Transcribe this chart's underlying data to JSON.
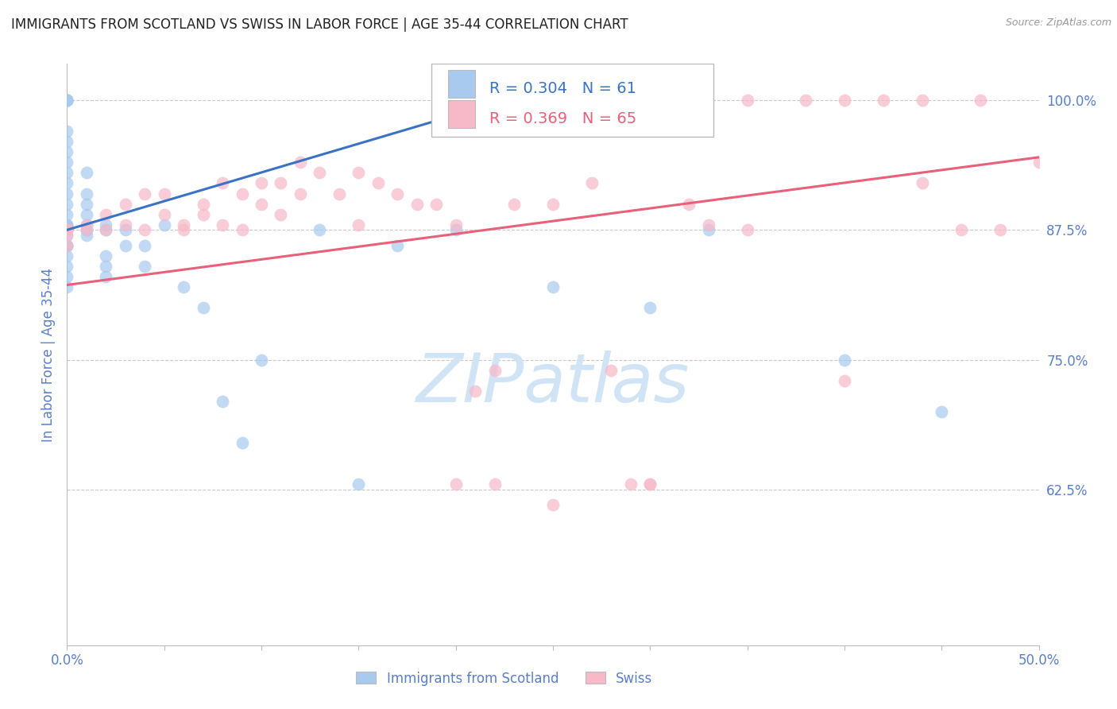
{
  "title": "IMMIGRANTS FROM SCOTLAND VS SWISS IN LABOR FORCE | AGE 35-44 CORRELATION CHART",
  "source": "Source: ZipAtlas.com",
  "ylabel": "In Labor Force | Age 35-44",
  "legend_blue_r": "R = 0.304",
  "legend_blue_n": "N = 61",
  "legend_pink_r": "R = 0.369",
  "legend_pink_n": "N = 65",
  "blue_color": "#A8CAEE",
  "pink_color": "#F7B8C8",
  "blue_line_color": "#3A72C4",
  "pink_line_color": "#E8607A",
  "title_color": "#222222",
  "axis_label_color": "#5A7FC8",
  "tick_label_color": "#5A7FC8",
  "legend_text_color": "#222222",
  "watermark_color": "#D0E4F5",
  "background_color": "#FFFFFF",
  "grid_color": "#BBBBBB",
  "xmin": 0.0,
  "xmax": 0.5,
  "ymin": 0.475,
  "ymax": 1.035,
  "ytick_values": [
    1.0,
    0.875,
    0.75,
    0.625
  ],
  "ytick_labels": [
    "100.0%",
    "87.5%",
    "75.0%",
    "62.5%"
  ],
  "xtick_values": [
    0.0,
    0.05,
    0.1,
    0.15,
    0.2,
    0.25,
    0.3,
    0.35,
    0.4,
    0.45,
    0.5
  ],
  "blue_scatter_x": [
    0.0,
    0.0,
    0.0,
    0.0,
    0.0,
    0.0,
    0.0,
    0.0,
    0.0,
    0.0,
    0.0,
    0.0,
    0.0,
    0.0,
    0.0,
    0.0,
    0.0,
    0.0,
    0.0,
    0.0,
    0.0,
    0.0,
    0.0,
    0.0,
    0.0,
    0.0,
    0.0,
    0.0,
    0.01,
    0.01,
    0.01,
    0.01,
    0.01,
    0.01,
    0.01,
    0.01,
    0.02,
    0.02,
    0.02,
    0.02,
    0.02,
    0.03,
    0.03,
    0.04,
    0.04,
    0.05,
    0.06,
    0.07,
    0.08,
    0.09,
    0.1,
    0.13,
    0.15,
    0.17,
    0.2,
    0.25,
    0.33,
    0.4,
    0.25,
    0.3,
    0.45
  ],
  "blue_scatter_y": [
    1.0,
    1.0,
    1.0,
    1.0,
    1.0,
    1.0,
    0.97,
    0.96,
    0.95,
    0.94,
    0.93,
    0.92,
    0.91,
    0.9,
    0.89,
    0.88,
    0.88,
    0.88,
    0.875,
    0.875,
    0.87,
    0.86,
    0.86,
    0.86,
    0.85,
    0.84,
    0.83,
    0.82,
    0.93,
    0.91,
    0.9,
    0.89,
    0.88,
    0.875,
    0.875,
    0.87,
    0.88,
    0.875,
    0.85,
    0.84,
    0.83,
    0.875,
    0.86,
    0.86,
    0.84,
    0.88,
    0.82,
    0.8,
    0.71,
    0.67,
    0.75,
    0.875,
    0.63,
    0.86,
    0.875,
    1.0,
    0.875,
    0.75,
    0.82,
    0.8,
    0.7
  ],
  "pink_scatter_x": [
    0.0,
    0.0,
    0.0,
    0.0,
    0.0,
    0.0,
    0.01,
    0.01,
    0.02,
    0.02,
    0.03,
    0.03,
    0.04,
    0.04,
    0.05,
    0.05,
    0.06,
    0.06,
    0.07,
    0.07,
    0.08,
    0.08,
    0.09,
    0.09,
    0.1,
    0.1,
    0.11,
    0.11,
    0.12,
    0.12,
    0.13,
    0.14,
    0.15,
    0.15,
    0.16,
    0.17,
    0.18,
    0.19,
    0.2,
    0.21,
    0.22,
    0.23,
    0.25,
    0.27,
    0.29,
    0.3,
    0.32,
    0.33,
    0.35,
    0.38,
    0.4,
    0.42,
    0.44,
    0.46,
    0.48,
    0.5,
    0.28,
    0.3,
    0.35,
    0.4,
    0.44,
    0.47,
    0.2,
    0.22,
    0.25
  ],
  "pink_scatter_y": [
    0.875,
    0.875,
    0.875,
    0.875,
    0.87,
    0.86,
    0.88,
    0.875,
    0.89,
    0.875,
    0.9,
    0.88,
    0.91,
    0.875,
    0.91,
    0.89,
    0.88,
    0.875,
    0.9,
    0.89,
    0.92,
    0.88,
    0.91,
    0.875,
    0.92,
    0.9,
    0.92,
    0.89,
    0.94,
    0.91,
    0.93,
    0.91,
    0.93,
    0.88,
    0.92,
    0.91,
    0.9,
    0.9,
    0.88,
    0.72,
    0.74,
    0.9,
    0.9,
    0.92,
    0.63,
    0.63,
    0.9,
    0.88,
    1.0,
    1.0,
    1.0,
    1.0,
    1.0,
    0.875,
    0.875,
    0.94,
    0.74,
    0.63,
    0.875,
    0.73,
    0.92,
    1.0,
    0.63,
    0.63,
    0.61
  ],
  "blue_trend_x": [
    0.0,
    0.28
  ],
  "blue_trend_y": [
    0.875,
    1.03
  ],
  "pink_trend_x": [
    0.0,
    0.5
  ],
  "pink_trend_y": [
    0.822,
    0.945
  ]
}
